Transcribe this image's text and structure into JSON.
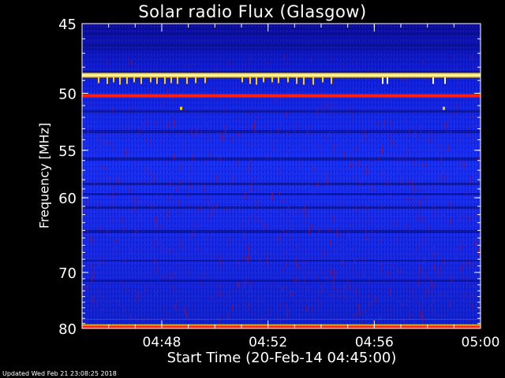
{
  "chart_data": {
    "type": "heatmap",
    "title": "Solar radio Flux (Glasgow)",
    "xlabel": "Start Time (20-Feb-14 04:45:00)",
    "ylabel": "Frequency [MHz]",
    "x_axis": {
      "start": "04:45",
      "end": "05:00",
      "ticks": [
        "04:48",
        "04:52",
        "04:56",
        "05:00"
      ]
    },
    "y_axis": {
      "scale": "reciprocal",
      "range": [
        45,
        80
      ],
      "inverted": true,
      "ticks": [
        "45",
        "50",
        "55",
        "60",
        "70",
        "80"
      ]
    },
    "colormap": [
      "#0000a0",
      "#0020ff",
      "#a01040",
      "#ff2010",
      "#ffd000",
      "#ffffff"
    ],
    "features": [
      {
        "kind": "band",
        "freq_mhz": 48.6,
        "color": "#ffffff"
      },
      {
        "kind": "band",
        "freq_mhz": 50.2,
        "color": "#ff2010"
      },
      {
        "kind": "band",
        "freq_mhz": 79.8,
        "color": "#ff4010"
      }
    ]
  },
  "footer": {
    "updated": "Updated Wed Feb 21 23:08:25 2018"
  }
}
